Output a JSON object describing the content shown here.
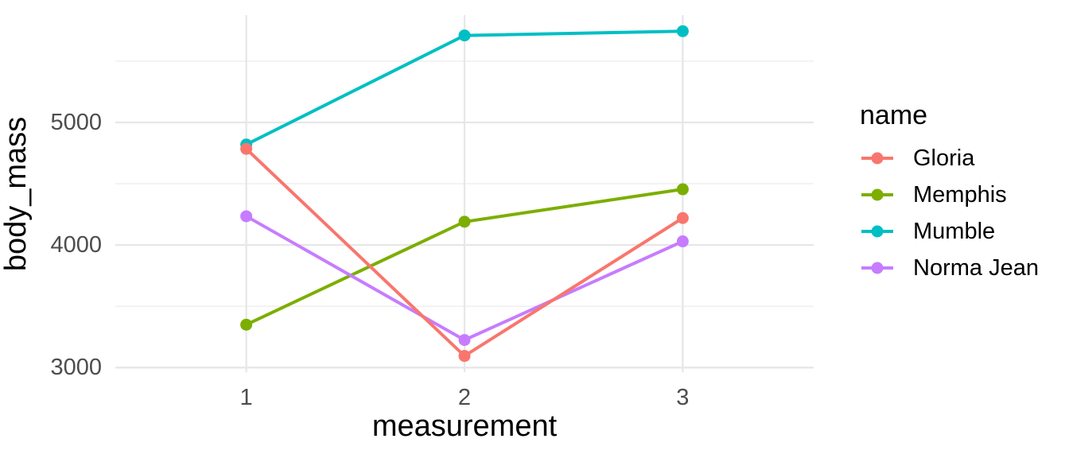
{
  "chart_data": {
    "type": "line",
    "title": "",
    "xlabel": "measurement",
    "ylabel": "body_mass",
    "x": [
      1,
      2,
      3
    ],
    "series": [
      {
        "name": "Gloria",
        "color": "#F8766D",
        "values": [
          4785,
          3095,
          4220
        ]
      },
      {
        "name": "Memphis",
        "color": "#7CAE00",
        "values": [
          3350,
          4190,
          4455
        ]
      },
      {
        "name": "Mumble",
        "color": "#00BFC4",
        "values": [
          4820,
          5710,
          5745
        ]
      },
      {
        "name": "Norma Jean",
        "color": "#C77CFF",
        "values": [
          4235,
          3225,
          4030
        ]
      }
    ],
    "legend": {
      "title": "name",
      "position": "right"
    },
    "x_ticks": [
      "1",
      "2",
      "3"
    ],
    "y_ticks": [
      "3000",
      "4000",
      "5000"
    ],
    "y_minor_gridlines": [
      3500,
      4500,
      5500
    ],
    "xlim": [
      0.4,
      3.6
    ],
    "ylim": [
      2963,
      5876
    ],
    "grid": true,
    "background_color": "#FFFFFF",
    "major_grid_color": "#E7E7E7",
    "minor_grid_color": "#F0F0F0",
    "tick_label_color": "#4D4D4D",
    "title_color": "#000000"
  }
}
